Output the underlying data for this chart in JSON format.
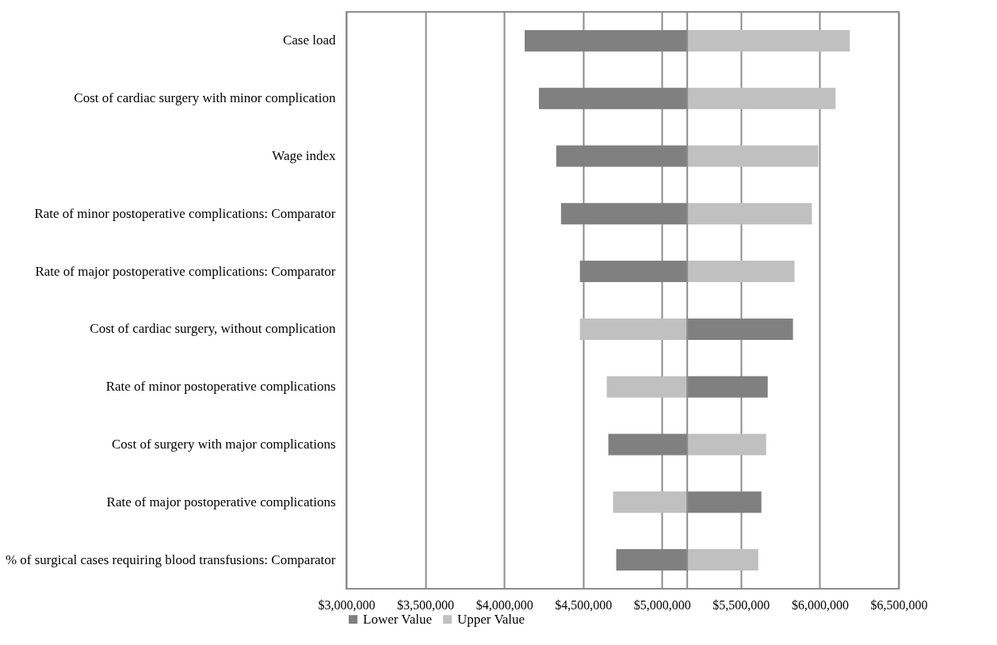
{
  "chart_data": {
    "type": "bar",
    "orientation": "horizontal",
    "categories": [
      "Case load",
      "Cost of cardiac surgery with minor complication",
      "Wage index",
      "Rate of minor postoperative complications: Comparator",
      "Rate of major postoperative complications: Comparator",
      "Cost of cardiac surgery, without complication",
      "Rate of minor postoperative complications",
      "Cost of surgery with major complications",
      "Rate of major postoperative complications",
      "% of surgical cases requiring blood transfusions: Comparator"
    ],
    "series": [
      {
        "name": "Lower Value",
        "color": "#808080",
        "base": [
          5160000,
          5160000,
          5160000,
          5160000,
          5160000,
          5160000,
          5160000,
          5160000,
          5160000,
          5160000
        ],
        "values": [
          -1030000,
          -940000,
          -830000,
          -800000,
          -680000,
          670000,
          510000,
          -500000,
          470000,
          -450000
        ]
      },
      {
        "name": "Upper Value",
        "color": "#c0c0c0",
        "base": [
          5160000,
          5160000,
          5160000,
          5160000,
          5160000,
          5160000,
          5160000,
          5160000,
          5160000,
          5160000
        ],
        "values": [
          1030000,
          940000,
          830000,
          790000,
          680000,
          -680000,
          -510000,
          500000,
          -470000,
          450000
        ]
      }
    ],
    "xlim": [
      3000000,
      6500000
    ],
    "xticks": [
      {
        "value": 3000000,
        "label": "$3,000,000"
      },
      {
        "value": 3500000,
        "label": "$3,500,000"
      },
      {
        "value": 4000000,
        "label": "$4,000,000"
      },
      {
        "value": 4500000,
        "label": "$4,500,000"
      },
      {
        "value": 5000000,
        "label": "$5,000,000"
      },
      {
        "value": 5500000,
        "label": "$5,500,000"
      },
      {
        "value": 6000000,
        "label": "$6,000,000"
      },
      {
        "value": 6500000,
        "label": "$6,500,000"
      }
    ],
    "grid": "x",
    "legend": "bottom"
  }
}
